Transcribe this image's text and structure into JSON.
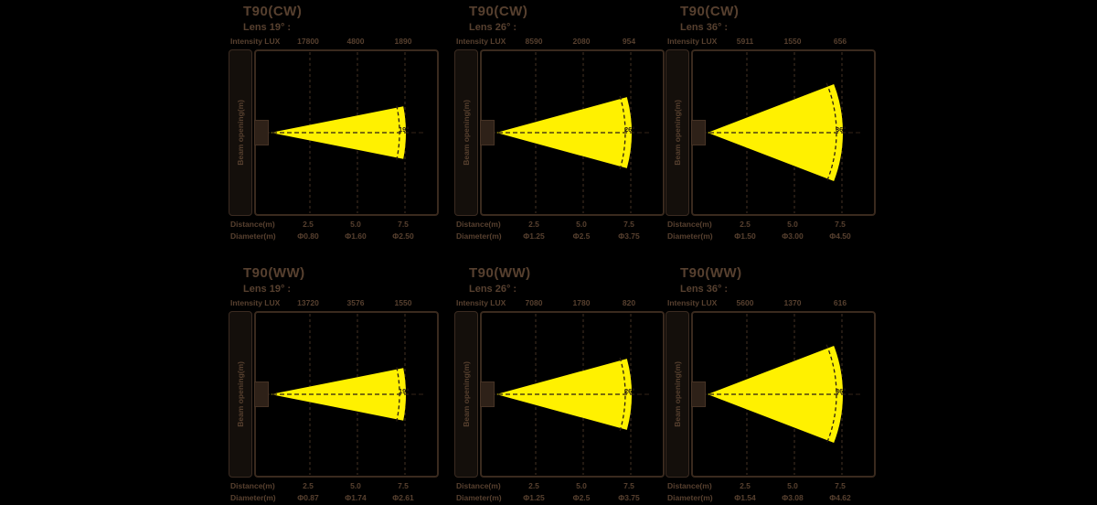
{
  "page": {
    "background": "#000000",
    "text_color": "#57402f",
    "beam_color": "#fff100",
    "line_color": "#3a2a1e"
  },
  "labels": {
    "intensity": "Intensity LUX",
    "distance": "Distance(m)",
    "diameter": "Diameter(m)",
    "beam_opening": "Beam opening(m)"
  },
  "charts": [
    {
      "title": "T90(CW)",
      "lens_label": "Lens 19° :",
      "angle_deg": 19,
      "angle_label": "19°",
      "intensity": [
        "17800",
        "4800",
        "1890"
      ],
      "distances": [
        "2.5",
        "5.0",
        "7.5"
      ],
      "diameters": [
        "Φ0.80",
        "Φ1.60",
        "Φ2.50"
      ]
    },
    {
      "title": "T90(CW)",
      "lens_label": "Lens 26° :",
      "angle_deg": 26,
      "angle_label": "26°",
      "intensity": [
        "8590",
        "2080",
        "954"
      ],
      "distances": [
        "2.5",
        "5.0",
        "7.5"
      ],
      "diameters": [
        "Φ1.25",
        "Φ2.5",
        "Φ3.75"
      ]
    },
    {
      "title": "T90(CW)",
      "lens_label": "Lens 36° :",
      "angle_deg": 36,
      "angle_label": "36°",
      "intensity": [
        "5911",
        "1550",
        "656"
      ],
      "distances": [
        "2.5",
        "5.0",
        "7.5"
      ],
      "diameters": [
        "Φ1.50",
        "Φ3.00",
        "Φ4.50"
      ]
    },
    {
      "title": "T90(WW)",
      "lens_label": "Lens 19° :",
      "angle_deg": 19,
      "angle_label": "19°",
      "intensity": [
        "13720",
        "3576",
        "1550"
      ],
      "distances": [
        "2.5",
        "5.0",
        "7.5"
      ],
      "diameters": [
        "Φ0.87",
        "Φ1.74",
        "Φ2.61"
      ]
    },
    {
      "title": "T90(WW)",
      "lens_label": "Lens 26° :",
      "angle_deg": 26,
      "angle_label": "26°",
      "intensity": [
        "7080",
        "1780",
        "820"
      ],
      "distances": [
        "2.5",
        "5.0",
        "7.5"
      ],
      "diameters": [
        "Φ1.25",
        "Φ2.5",
        "Φ3.75"
      ]
    },
    {
      "title": "T90(WW)",
      "lens_label": "Lens 36° :",
      "angle_deg": 36,
      "angle_label": "36°",
      "intensity": [
        "5600",
        "1370",
        "616"
      ],
      "distances": [
        "2.5",
        "5.0",
        "7.5"
      ],
      "diameters": [
        "Φ1.54",
        "Φ3.08",
        "Φ4.62"
      ]
    }
  ]
}
